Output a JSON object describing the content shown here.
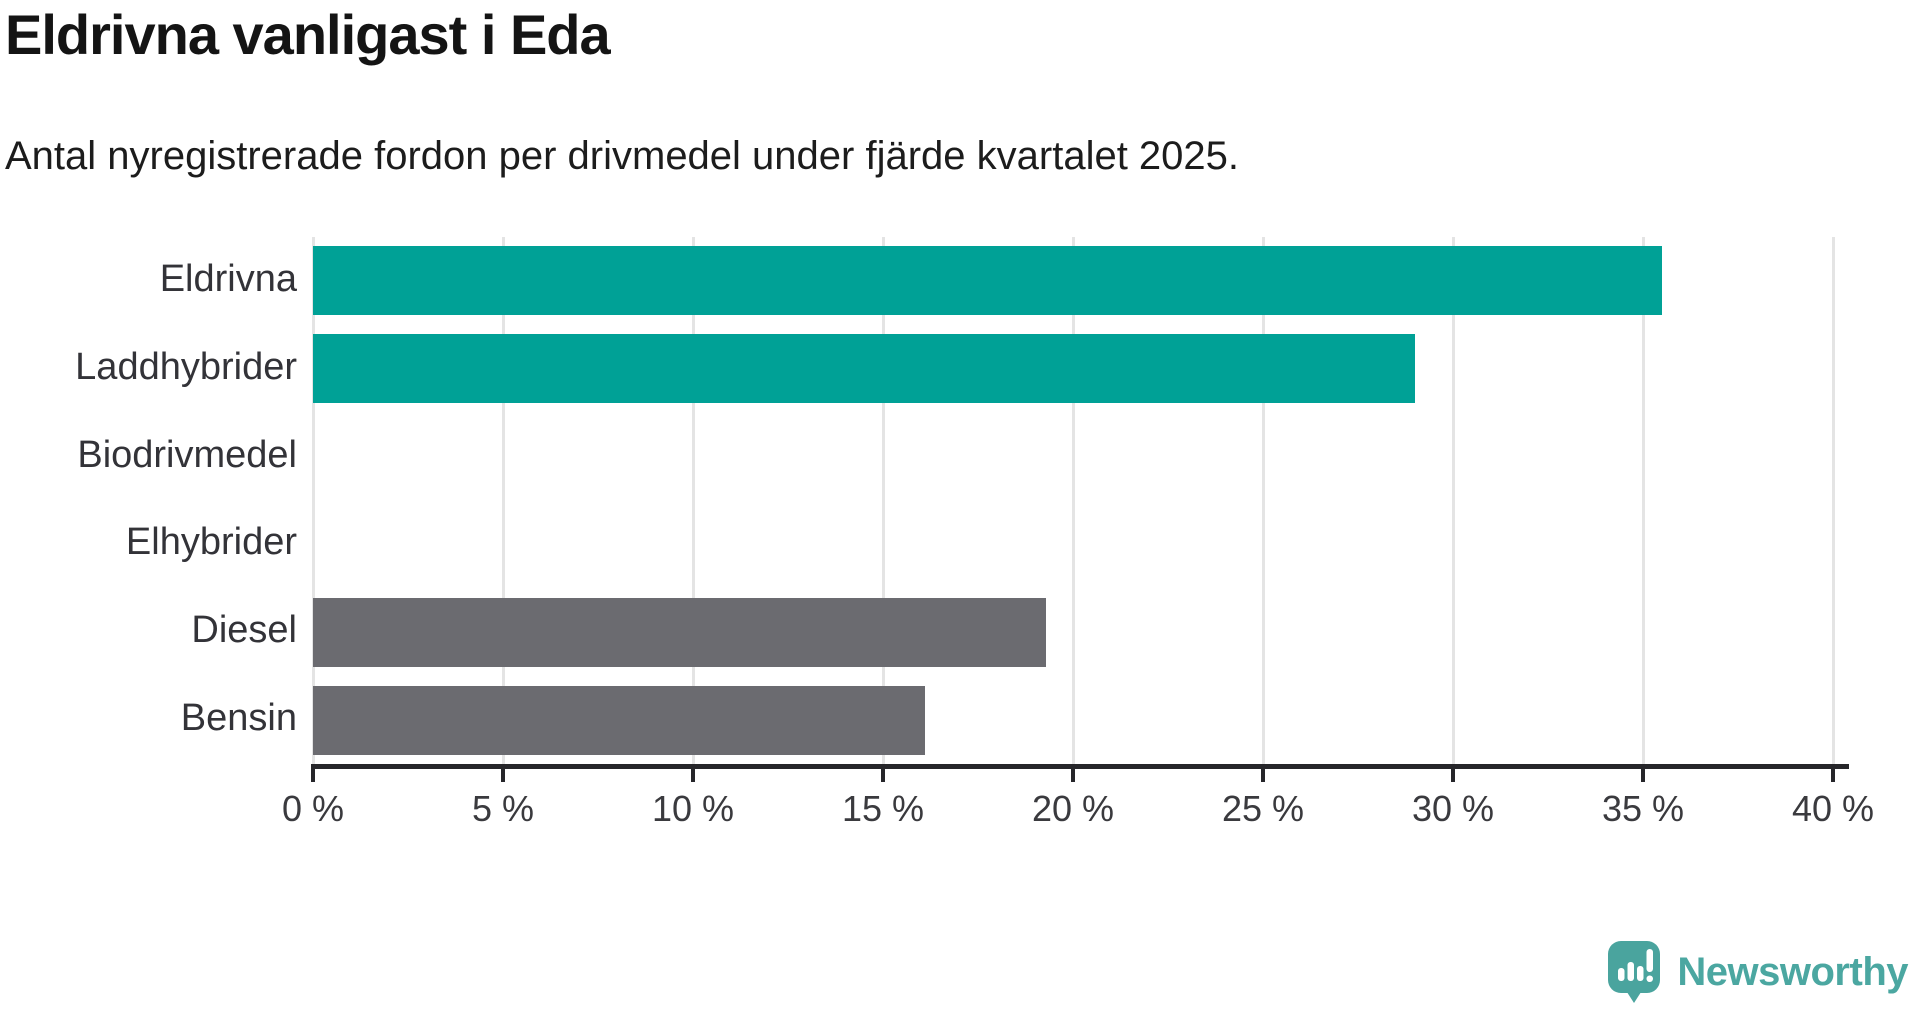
{
  "header": {
    "title": "Eldrivna vanligast i Eda",
    "subtitle": "Antal nyregistrerade fordon per drivmedel under fjärde kvartalet 2025."
  },
  "chart_data": {
    "type": "bar",
    "orientation": "horizontal",
    "title": "Eldrivna vanligast i Eda",
    "subtitle": "Antal nyregistrerade fordon per drivmedel under fjärde kvartalet 2025.",
    "categories": [
      "Eldrivna",
      "Laddhybrider",
      "Biodrivmedel",
      "Elhybrider",
      "Diesel",
      "Bensin"
    ],
    "values": [
      35.5,
      29.0,
      0,
      0,
      19.3,
      16.1
    ],
    "unit": "%",
    "xlim": [
      0,
      40
    ],
    "x_ticks": [
      0,
      5,
      10,
      15,
      20,
      25,
      30,
      35,
      40
    ],
    "x_tick_labels": [
      "0 %",
      "5 %",
      "10 %",
      "15 %",
      "20 %",
      "25 %",
      "30 %",
      "35 %",
      "40 %"
    ],
    "bar_colors": [
      "#00a196",
      "#00a196",
      "#00a196",
      "#00a196",
      "#6b6b70",
      "#6b6b70"
    ],
    "grid": true,
    "legend": "none",
    "colors": {
      "highlight": "#00a196",
      "muted": "#6b6b70",
      "gridline": "#e4e4e4",
      "axis": "#26262a",
      "tick_text": "#3a3a3e",
      "label_text": "#333338"
    }
  },
  "footer": {
    "brand": "Newsworthy",
    "logo_color": "#4aa49e",
    "text_color": "#4ba7a1"
  }
}
